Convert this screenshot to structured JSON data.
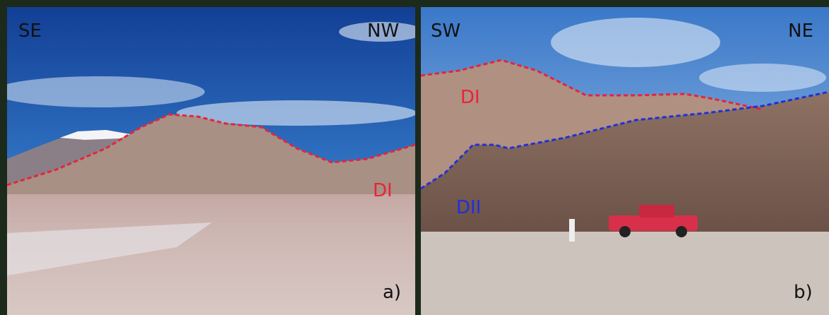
{
  "panel_a": {
    "left_label": "SE",
    "right_label": "NW",
    "unit_label": "DI",
    "tag": "a)"
  },
  "panel_b": {
    "left_label": "SW",
    "right_label": "NE",
    "upper_unit_label": "DI",
    "lower_unit_label": "DII",
    "tag": "b)"
  }
}
